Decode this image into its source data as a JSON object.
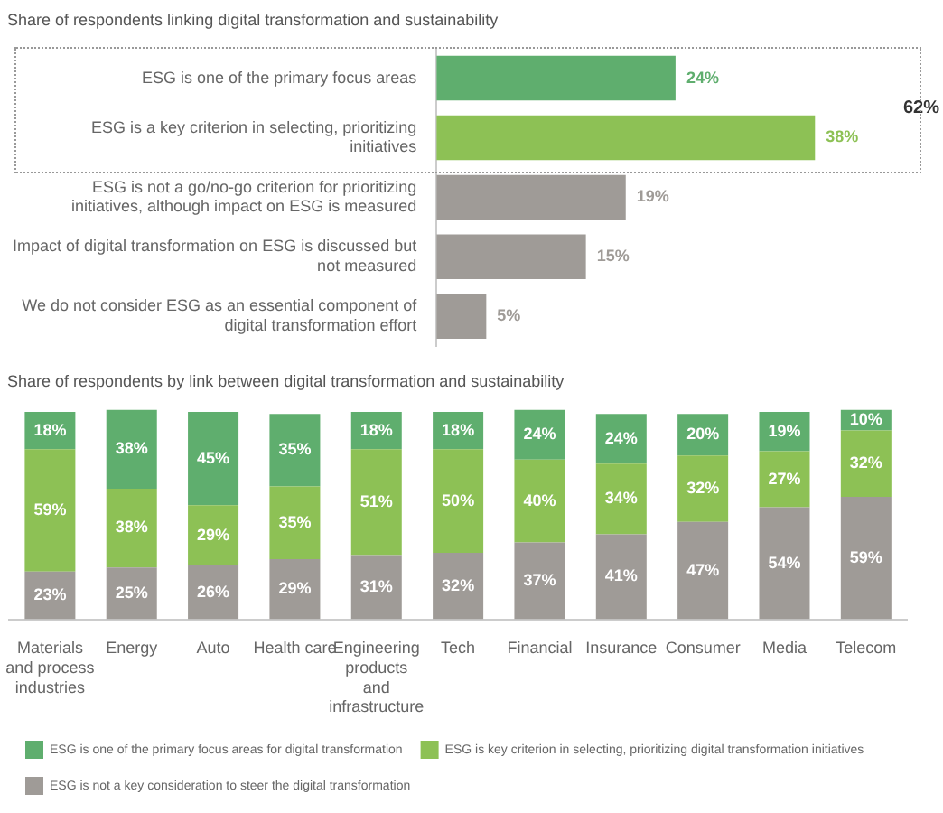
{
  "chart_data": [
    {
      "type": "bar",
      "orientation": "horizontal",
      "title": "Share of respondents linking digital transformation and sustainability",
      "categories": [
        "ESG is one of the primary focus areas",
        "ESG is a key criterion in selecting, prioritizing initiatives",
        "ESG is not a go/no-go criterion for prioritizing initiatives, although impact on ESG is measured",
        "Impact of digital transformation on ESG is discussed but not measured",
        "We do not consider ESG as an essential component of digital transformation effort"
      ],
      "values": [
        24,
        38,
        19,
        15,
        5
      ],
      "value_labels": [
        "24%",
        "38%",
        "19%",
        "15%",
        "5%"
      ],
      "colors": [
        "#5fae6e",
        "#8dc155",
        "#9f9b97",
        "#9f9b97",
        "#9f9b97"
      ],
      "tick_labels": "y",
      "annotations": [
        "62%"
      ]
    },
    {
      "type": "bar",
      "stacked": true,
      "title": "Share of respondents by link between digital transformation and sustainability",
      "categories": [
        "Materials and process industries",
        "Energy",
        "Auto",
        "Health care",
        "Engineering products and infrastructure",
        "Tech",
        "Financial",
        "Insurance",
        "Consumer",
        "Media",
        "Telecom"
      ],
      "series": [
        {
          "name": "ESG is not a key consideration to steer the digital transformation",
          "color": "#9f9b97",
          "values": [
            23,
            25,
            26,
            29,
            31,
            32,
            37,
            41,
            47,
            54,
            59
          ],
          "value_labels": [
            "23%",
            "25%",
            "26%",
            "29%",
            "31%",
            "32%",
            "37%",
            "41%",
            "47%",
            "54%",
            "59%"
          ]
        },
        {
          "name": "ESG is key criterion in selecting, prioritizing digital transformation initiatives",
          "color": "#8dc155",
          "values": [
            59,
            38,
            29,
            35,
            51,
            50,
            40,
            34,
            32,
            27,
            32
          ],
          "value_labels": [
            "59%",
            "38%",
            "29%",
            "35%",
            "51%",
            "50%",
            "40%",
            "34%",
            "32%",
            "27%",
            "32%"
          ]
        },
        {
          "name": "ESG is one of the primary focus areas for digital transformation",
          "color": "#5fae6e",
          "values": [
            18,
            38,
            45,
            35,
            18,
            18,
            24,
            24,
            20,
            19,
            10
          ],
          "value_labels": [
            "18%",
            "38%",
            "45%",
            "35%",
            "18%",
            "18%",
            "24%",
            "24%",
            "20%",
            "19%",
            "10%"
          ]
        }
      ],
      "tick_labels": "x",
      "legend": "bottom"
    }
  ]
}
